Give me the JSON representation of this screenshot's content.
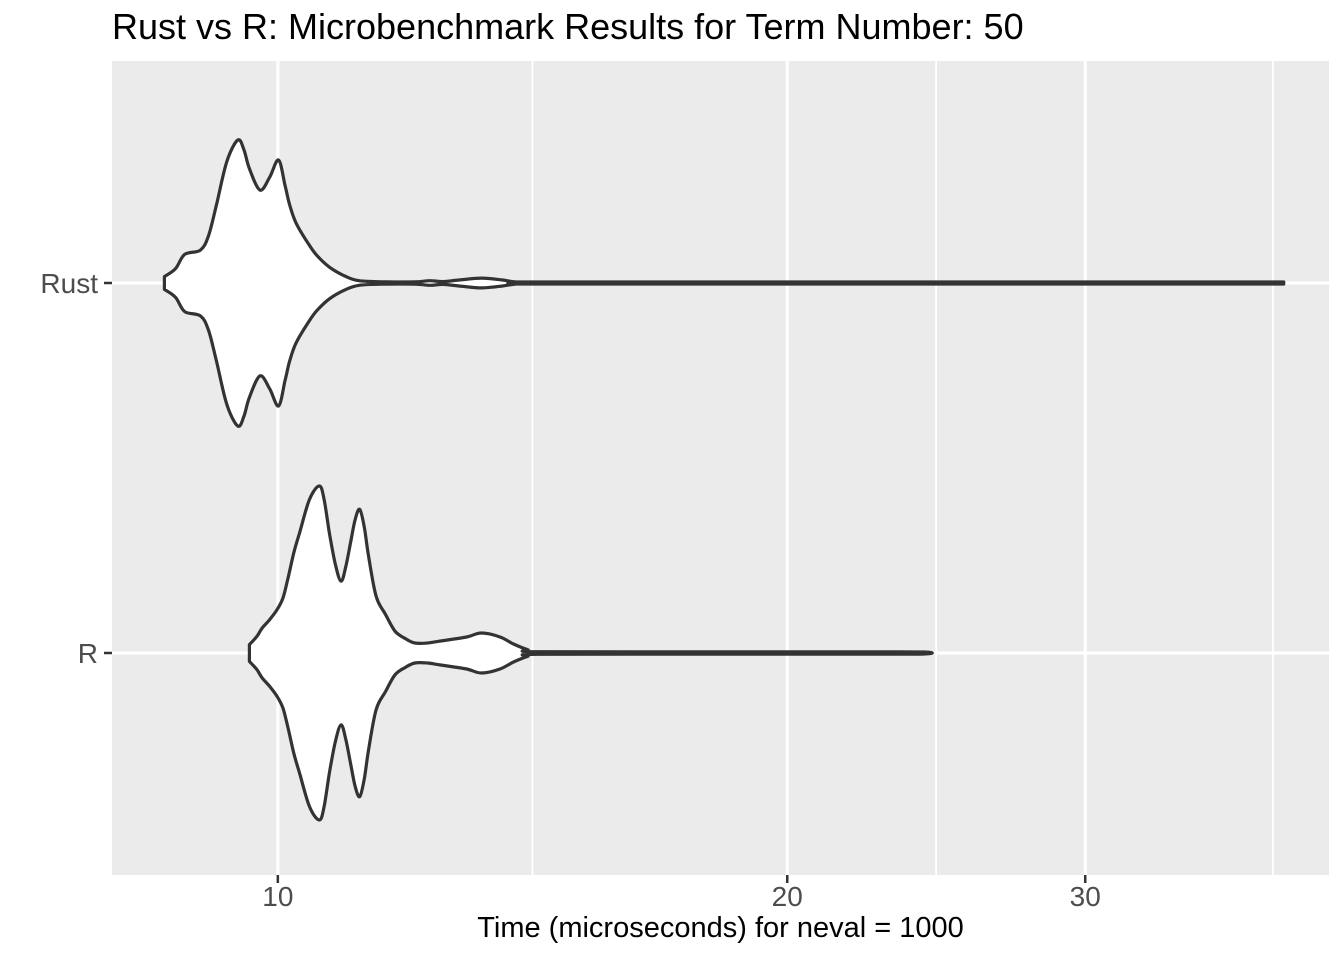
{
  "chart_data": {
    "type": "violin",
    "orientation": "horizontal",
    "title": "Rust vs R: Microbenchmark Results for Term Number: 50",
    "xlabel": "Time (microseconds) for neval = 1000",
    "ylabel": "",
    "x_scale": "log10",
    "x_range": [
      7.98,
      41.8
    ],
    "x_ticks": [
      10,
      20,
      30
    ],
    "x_tick_labels": [
      "10",
      "20",
      "30"
    ],
    "x_minor_breaks": [
      14.14,
      24.49,
      38.73
    ],
    "categories": [
      "Rust",
      "R"
    ],
    "grid": true,
    "legend": "none",
    "series": [
      {
        "name": "Rust",
        "min": 8.6,
        "mode_values": [
          9.5,
          10.0
        ],
        "secondary_bump": 13.2,
        "max": 38.8,
        "profile": [
          [
            8.57,
            0.045
          ],
          [
            8.7,
            0.1
          ],
          [
            8.81,
            0.2
          ],
          [
            9.0,
            0.23
          ],
          [
            9.1,
            0.33
          ],
          [
            9.2,
            0.55
          ],
          [
            9.33,
            0.85
          ],
          [
            9.47,
            1.0
          ],
          [
            9.55,
            0.93
          ],
          [
            9.62,
            0.8
          ],
          [
            9.76,
            0.65
          ],
          [
            9.89,
            0.74
          ],
          [
            10.01,
            0.86
          ],
          [
            10.1,
            0.68
          ],
          [
            10.16,
            0.55
          ],
          [
            10.25,
            0.42
          ],
          [
            10.43,
            0.27
          ],
          [
            10.55,
            0.19
          ],
          [
            10.73,
            0.11
          ],
          [
            10.95,
            0.05
          ],
          [
            11.17,
            0.016
          ],
          [
            11.6,
            0.008
          ],
          [
            12.05,
            0.008
          ],
          [
            12.3,
            0.016
          ],
          [
            12.52,
            0.01
          ],
          [
            12.82,
            0.022
          ],
          [
            13.19,
            0.034
          ],
          [
            13.56,
            0.022
          ],
          [
            13.81,
            0.008
          ],
          [
            14.13,
            0.007
          ],
          [
            20.0,
            0.007
          ],
          [
            30.0,
            0.007
          ],
          [
            38.5,
            0.007
          ],
          [
            38.77,
            0.006
          ]
        ]
      },
      {
        "name": "R",
        "min": 9.6,
        "mode_values": [
          10.6,
          11.2
        ],
        "secondary_bump": 13.2,
        "max": 24.1,
        "profile": [
          [
            9.62,
            0.05
          ],
          [
            9.72,
            0.1
          ],
          [
            9.79,
            0.15
          ],
          [
            9.89,
            0.2
          ],
          [
            9.99,
            0.26
          ],
          [
            10.07,
            0.33
          ],
          [
            10.14,
            0.45
          ],
          [
            10.22,
            0.6
          ],
          [
            10.3,
            0.72
          ],
          [
            10.44,
            0.92
          ],
          [
            10.58,
            1.0
          ],
          [
            10.65,
            0.92
          ],
          [
            10.73,
            0.71
          ],
          [
            10.82,
            0.52
          ],
          [
            10.9,
            0.43
          ],
          [
            10.97,
            0.52
          ],
          [
            11.04,
            0.66
          ],
          [
            11.11,
            0.8
          ],
          [
            11.18,
            0.86
          ],
          [
            11.25,
            0.75
          ],
          [
            11.31,
            0.59
          ],
          [
            11.43,
            0.34
          ],
          [
            11.58,
            0.23
          ],
          [
            11.73,
            0.13
          ],
          [
            11.9,
            0.085
          ],
          [
            12.05,
            0.06
          ],
          [
            12.26,
            0.06
          ],
          [
            12.48,
            0.072
          ],
          [
            12.93,
            0.096
          ],
          [
            13.19,
            0.12
          ],
          [
            13.53,
            0.096
          ],
          [
            13.78,
            0.054
          ],
          [
            14.05,
            0.02
          ],
          [
            14.24,
            0.008
          ],
          [
            18.0,
            0.007
          ],
          [
            22.0,
            0.007
          ],
          [
            24.09,
            0.006
          ]
        ]
      }
    ]
  },
  "style": {
    "panel_bg": "#EBEBEB",
    "grid_color": "#FFFFFF",
    "violin_outline": "#333333",
    "violin_fill": "#FFFFFF",
    "tick_mark_color": "#333333",
    "tick_label_color": "#4D4D4D",
    "title_color": "#000000",
    "background": "#FFFFFF"
  }
}
